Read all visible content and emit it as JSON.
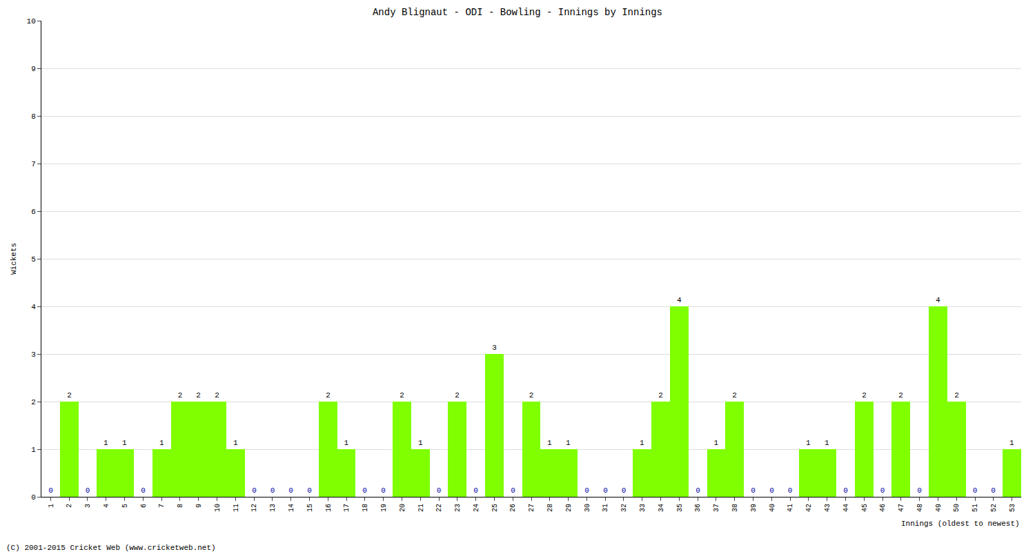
{
  "chart_data": {
    "type": "bar",
    "title": "Andy Blignaut - ODI - Bowling - Innings by Innings",
    "xlabel": "Innings (oldest to newest)",
    "ylabel": "Wickets",
    "annotations": [
      "(C) 2001-2015 Cricket Web (www.cricketweb.net)"
    ],
    "categories": [
      "1",
      "2",
      "3",
      "4",
      "5",
      "6",
      "7",
      "8",
      "9",
      "10",
      "11",
      "12",
      "13",
      "14",
      "15",
      "16",
      "17",
      "18",
      "19",
      "20",
      "21",
      "22",
      "23",
      "24",
      "25",
      "26",
      "27",
      "28",
      "29",
      "30",
      "31",
      "32",
      "33",
      "34",
      "35",
      "36",
      "37",
      "38",
      "39",
      "40",
      "41",
      "42",
      "43",
      "44",
      "45",
      "46",
      "47",
      "48",
      "49",
      "50",
      "51",
      "52",
      "53"
    ],
    "values": [
      0,
      2,
      0,
      1,
      1,
      0,
      1,
      2,
      2,
      2,
      1,
      0,
      0,
      0,
      0,
      2,
      1,
      0,
      0,
      2,
      1,
      0,
      2,
      0,
      3,
      0,
      2,
      1,
      1,
      0,
      0,
      0,
      1,
      2,
      4,
      0,
      1,
      2,
      0,
      0,
      0,
      1,
      1,
      0,
      2,
      0,
      2,
      0,
      4,
      2,
      0,
      0,
      1
    ],
    "color": "#7fff00",
    "ylim": [
      0,
      10
    ],
    "yticks": [
      0,
      1,
      2,
      3,
      4,
      5,
      6,
      7,
      8,
      9,
      10
    ],
    "grid": true,
    "data_labels": true
  }
}
